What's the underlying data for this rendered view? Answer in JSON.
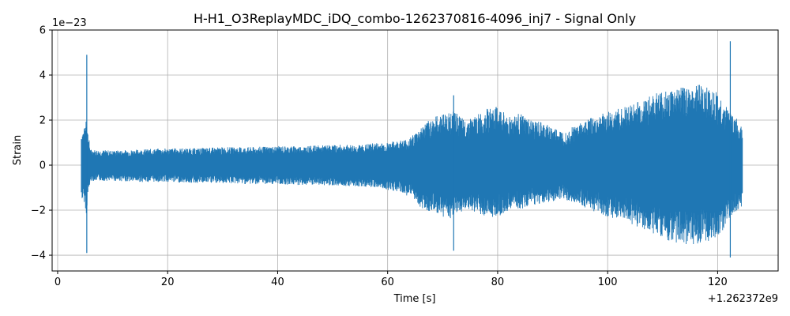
{
  "chart_data": {
    "type": "line",
    "title": "H-H1_O3ReplayMDC_iDQ_combo-1262370816-4096_inj7 - Signal Only",
    "xlabel": "Time [s]",
    "ylabel": "Strain",
    "x_offset_label": "+1.262372e9",
    "y_scale_label": "1e−23",
    "xlim": [
      -1,
      131
    ],
    "ylim": [
      -4.7,
      6
    ],
    "x_ticks": [
      0,
      20,
      40,
      60,
      80,
      100,
      120
    ],
    "x_tick_labels": [
      "0",
      "20",
      "40",
      "60",
      "80",
      "100",
      "120"
    ],
    "y_ticks": [
      -4,
      -2,
      0,
      2,
      4,
      6
    ],
    "y_tick_labels": [
      "−4",
      "−2",
      "0",
      "2",
      "4",
      "6"
    ],
    "grid": true,
    "series": [
      {
        "color": "#1f77b4",
        "envelope": {
          "x": [
            4.3,
            4.6,
            5.0,
            5.2,
            5.5,
            6,
            10,
            15,
            20,
            25,
            30,
            35,
            40,
            45,
            50,
            55,
            58,
            60,
            62,
            64,
            66,
            68,
            70,
            72,
            74,
            76,
            78,
            80,
            82,
            84,
            86,
            88,
            90,
            92,
            94,
            96,
            98,
            100,
            102,
            104,
            106,
            108,
            110,
            112,
            114,
            116,
            118,
            120,
            121,
            122,
            122.5,
            123,
            124,
            124.5
          ],
          "upper": [
            1.5,
            1.6,
            1.7,
            2.6,
            1.5,
            0.7,
            0.65,
            0.7,
            0.75,
            0.75,
            0.8,
            0.8,
            0.85,
            0.85,
            0.9,
            0.9,
            1.0,
            1.0,
            1.1,
            1.2,
            1.7,
            2.1,
            2.3,
            2.4,
            2.0,
            2.2,
            2.5,
            2.6,
            2.2,
            2.3,
            2.0,
            1.9,
            1.7,
            1.5,
            1.8,
            2.0,
            2.2,
            2.4,
            2.5,
            2.7,
            2.9,
            3.1,
            3.3,
            3.4,
            3.5,
            3.6,
            3.5,
            3.2,
            2.7,
            2.5,
            2.3,
            2.2,
            1.9,
            1.8
          ],
          "lower": [
            -1.5,
            -1.6,
            -1.7,
            -2.4,
            -1.4,
            -0.7,
            -0.7,
            -0.75,
            -0.75,
            -0.8,
            -0.8,
            -0.85,
            -0.85,
            -0.9,
            -0.9,
            -0.95,
            -1.0,
            -1.1,
            -1.2,
            -1.4,
            -1.9,
            -2.1,
            -2.3,
            -2.4,
            -2.0,
            -2.1,
            -2.3,
            -2.3,
            -2.0,
            -2.0,
            -1.8,
            -1.7,
            -1.6,
            -1.5,
            -1.7,
            -1.9,
            -2.1,
            -2.3,
            -2.4,
            -2.6,
            -2.8,
            -3.0,
            -3.3,
            -3.4,
            -3.6,
            -3.5,
            -3.4,
            -3.2,
            -2.9,
            -2.5,
            -2.3,
            -2.2,
            -1.9,
            -1.8
          ]
        },
        "spikes": [
          {
            "x": 5.3,
            "high": 4.9,
            "low": -3.9
          },
          {
            "x": 72.0,
            "high": 3.1,
            "low": -3.8
          },
          {
            "x": 122.3,
            "high": 5.5,
            "low": -4.1
          }
        ]
      }
    ]
  }
}
